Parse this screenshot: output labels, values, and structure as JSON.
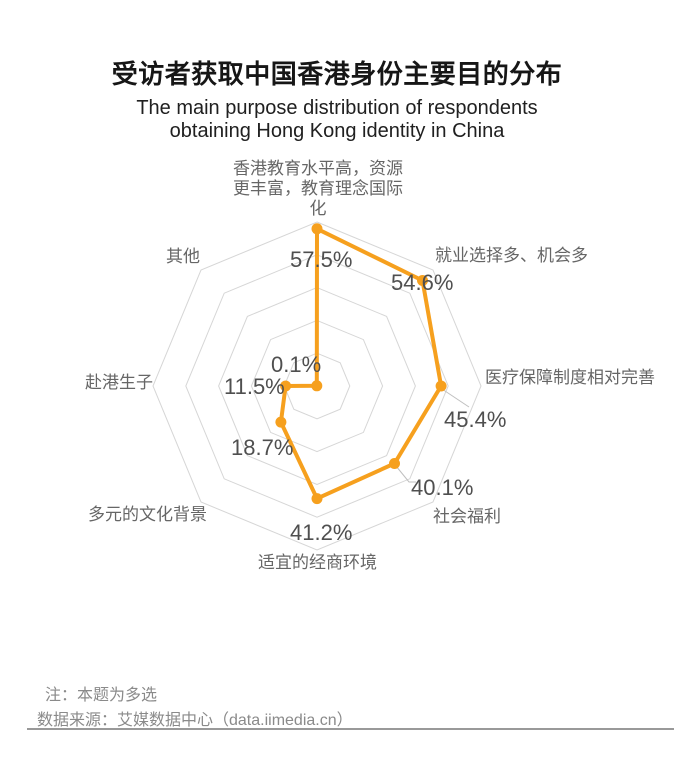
{
  "title": {
    "zh": "受访者获取中国香港身份主要目的分布",
    "en_lines": [
      "The main purpose distribution of respondents",
      "obtaining Hong Kong identity in China"
    ]
  },
  "chart_data": {
    "type": "radar",
    "title": "受访者获取中国香港身份主要目的分布",
    "subtitle": "The main purpose distribution of respondents obtaining Hong Kong identity in China",
    "categories": [
      "香港教育水平高，资源更丰富，教育理念国际化",
      "就业选择多、机会多",
      "医疗保障制度相对完善",
      "社会福利",
      "适宜的经商环境",
      "多元的文化背景",
      "赴港生子",
      "其他"
    ],
    "axis_labels_display": [
      "香港教育水平高，资源\n更丰富，教育理念国际\n化",
      "就业选择多、机会多",
      "医疗保障制度相对完善",
      "社会福利",
      "适宜的经商环境",
      "多元的文化背景",
      "赴港生子",
      "其他"
    ],
    "values": [
      57.5,
      54.6,
      45.4,
      40.1,
      41.2,
      18.7,
      11.5,
      0.1
    ],
    "value_labels": [
      "57.5%",
      "54.6%",
      "45.4%",
      "40.1%",
      "41.2%",
      "18.7%",
      "11.5%",
      "0.1%"
    ],
    "max": 60,
    "ring_count": 5,
    "start_axis": "top",
    "direction": "clockwise",
    "grid_shape": "octagon",
    "grid_on": true,
    "legend": "none",
    "line_color": "#F6A01E",
    "grid_color": "#D6D6D6",
    "leader_color": "#BFBFBF",
    "area_fill": "none"
  },
  "footer": {
    "note": "注：本题为多选",
    "source": "数据来源：艾媒数据中心（data.iimedia.cn）"
  }
}
